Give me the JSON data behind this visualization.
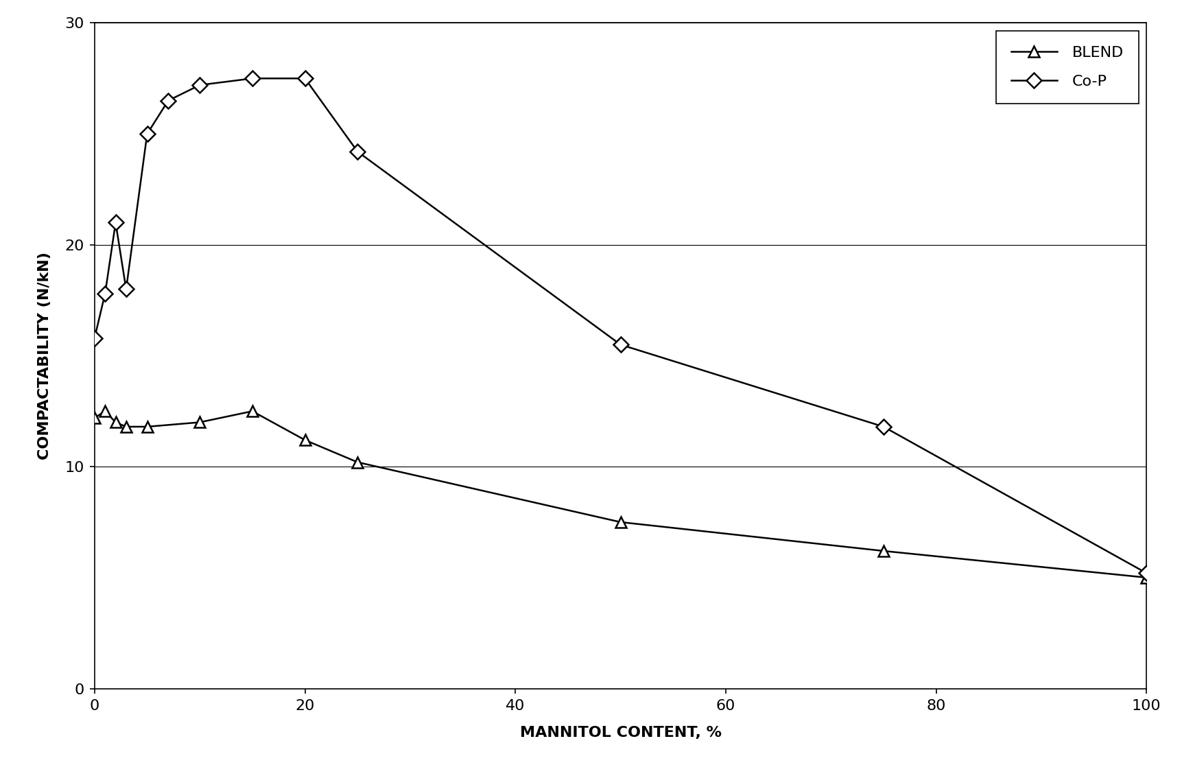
{
  "blend_x": [
    0,
    1,
    2,
    3,
    5,
    10,
    15,
    20,
    25,
    50,
    75,
    100
  ],
  "blend_y": [
    12.2,
    12.5,
    12.0,
    11.8,
    11.8,
    12.0,
    12.5,
    11.2,
    10.2,
    7.5,
    6.2,
    5.0
  ],
  "cop_x": [
    0,
    1,
    2,
    3,
    5,
    7,
    10,
    15,
    20,
    25,
    50,
    75,
    100
  ],
  "cop_y": [
    15.8,
    17.8,
    21.0,
    18.0,
    25.0,
    26.5,
    27.2,
    27.5,
    27.5,
    24.2,
    15.5,
    11.8,
    5.2
  ],
  "xlabel": "MANNITOL CONTENT, %",
  "ylabel": "COMPACTABILITY (N/kN)",
  "xlim": [
    0,
    100
  ],
  "ylim": [
    0,
    30
  ],
  "yticks": [
    0,
    10,
    20,
    30
  ],
  "xticks": [
    0,
    20,
    40,
    60,
    80,
    100
  ],
  "blend_label": "BLEND",
  "cop_label": "Co-P",
  "line_color": "#000000",
  "background_color": "#ffffff",
  "label_fontsize": 16,
  "tick_fontsize": 16,
  "legend_fontsize": 16,
  "line_width": 1.8,
  "marker_size": 11,
  "grid_linewidth": 0.8,
  "grid_color": "#000000"
}
